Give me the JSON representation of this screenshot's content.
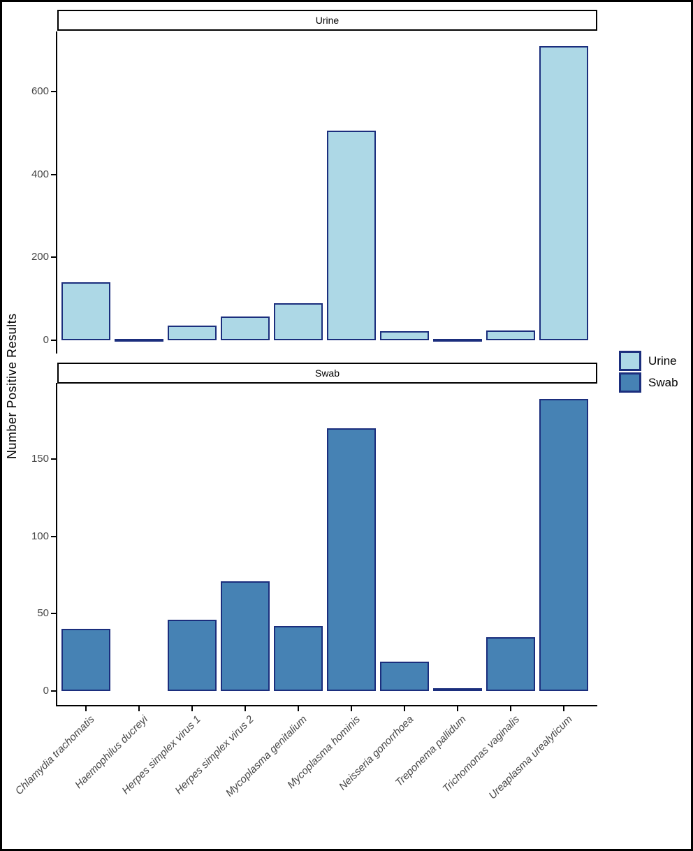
{
  "chart_data": {
    "type": "bar",
    "title": "",
    "ylabel": "Number Positive Results",
    "xlabel": "",
    "grid": false,
    "legend_position": "right",
    "bar_outline_color": "#1B2E7D",
    "categories": [
      "Chlamydia trachomatis",
      "Haemophilus ducreyi",
      "Herpes simplex virus 1",
      "Herpes simplex virus 2",
      "Mycoplasma genitalium",
      "Mycoplasma hominis",
      "Neisseria gonorrhoea",
      "Treponema pallidum",
      "Trichomonas vaginalis",
      "Ureaplasma urealyticum"
    ],
    "facets": [
      {
        "label": "Urine",
        "color": "#ADD8E6",
        "values": [
          140,
          1,
          35,
          58,
          90,
          505,
          22,
          1,
          23,
          710
        ],
        "yticks": [
          0,
          200,
          400,
          600
        ],
        "ylim": [
          0,
          745
        ]
      },
      {
        "label": "Swab",
        "color": "#4682B4",
        "values": [
          40,
          0,
          46,
          71,
          42,
          170,
          19,
          2,
          35,
          189
        ],
        "yticks": [
          0,
          50,
          100,
          150
        ],
        "ylim": [
          0,
          199
        ]
      }
    ],
    "legend": {
      "items": [
        {
          "label": "Urine",
          "color": "#ADD8E6"
        },
        {
          "label": "Swab",
          "color": "#4682B4"
        }
      ]
    }
  }
}
